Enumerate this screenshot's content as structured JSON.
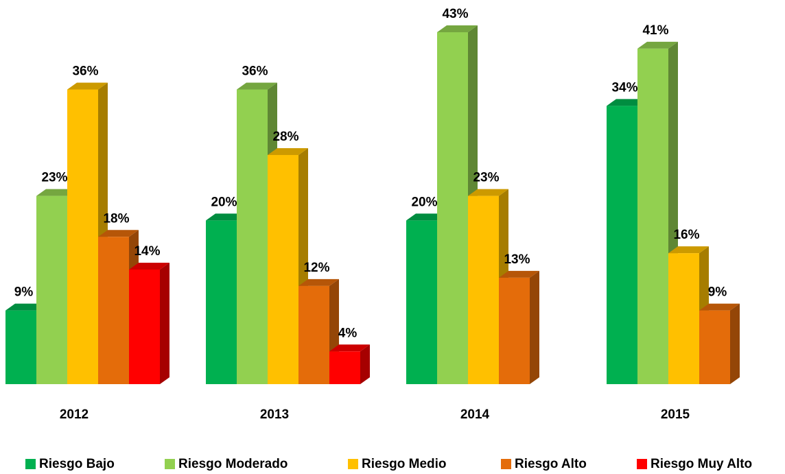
{
  "chart_data": {
    "type": "bar3d",
    "categories": [
      "2012",
      "2013",
      "2014",
      "2015"
    ],
    "series": [
      {
        "name": "Riesgo Bajo",
        "color": "#00b050",
        "values": [
          9,
          20,
          20,
          34
        ],
        "value_labels": [
          "9%",
          "20%",
          "20%",
          "34%"
        ]
      },
      {
        "name": "Riesgo Moderado",
        "color": "#92d050",
        "values": [
          23,
          36,
          43,
          41
        ],
        "value_labels": [
          "23%",
          "36%",
          "43%",
          "41%"
        ]
      },
      {
        "name": "Riesgo Medio",
        "color": "#ffc000",
        "values": [
          36,
          28,
          23,
          16
        ],
        "value_labels": [
          "36%",
          "28%",
          "23%",
          "16%"
        ]
      },
      {
        "name": "Riesgo Alto",
        "color": "#e46c0a",
        "values": [
          18,
          12,
          13,
          9
        ],
        "value_labels": [
          "18%",
          "12%",
          "13%",
          "9%"
        ]
      },
      {
        "name": "Riesgo Muy Alto",
        "color": "#ff0000",
        "values": [
          14,
          4,
          null,
          null
        ],
        "value_labels": [
          "14%",
          "4%",
          null,
          null
        ]
      }
    ],
    "legend": "bottom"
  }
}
